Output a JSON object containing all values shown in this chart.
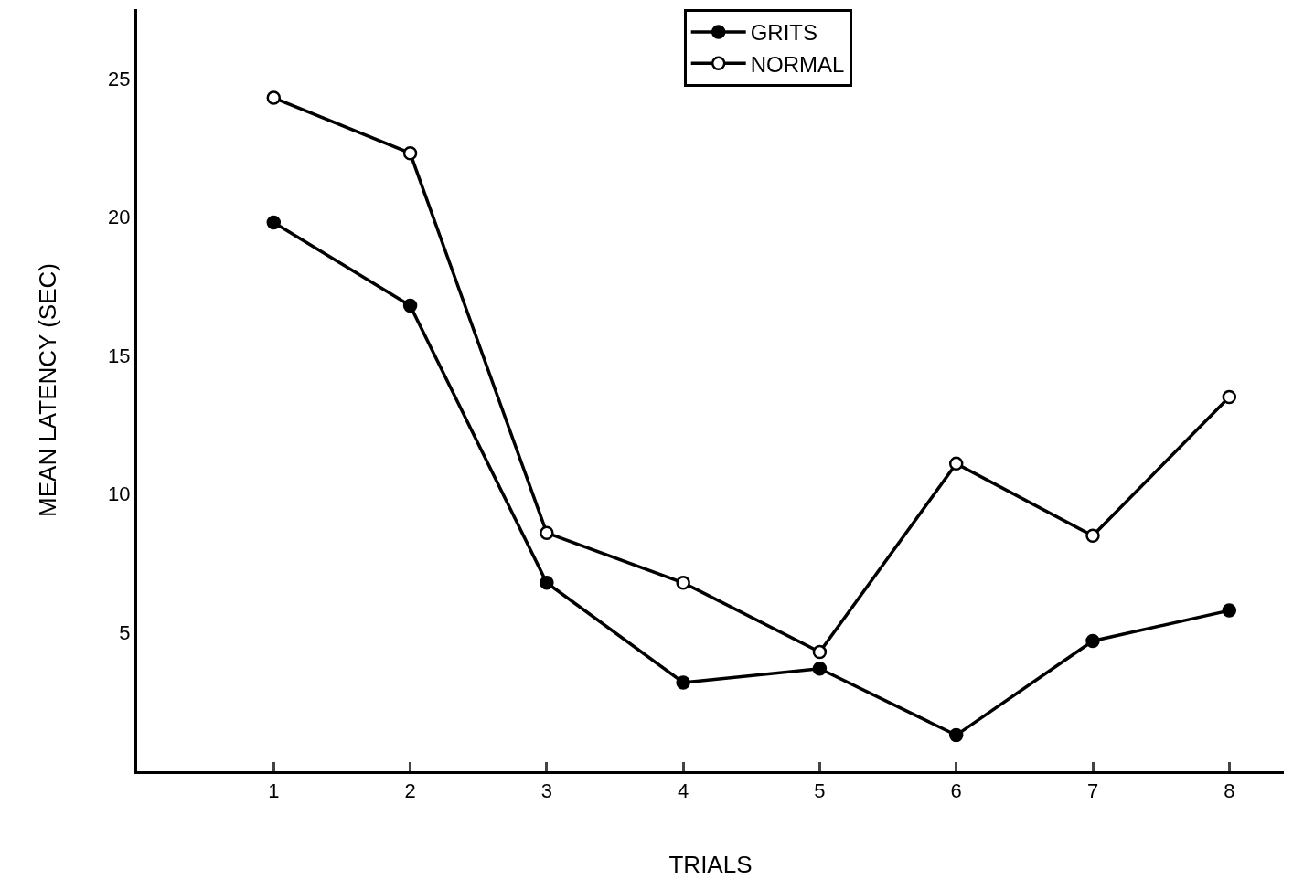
{
  "chart_data": {
    "type": "line",
    "xlabel": "TRIALS",
    "ylabel": "MEAN LATENCY (SEC)",
    "x": [
      1,
      2,
      3,
      4,
      5,
      6,
      7,
      8
    ],
    "series": [
      {
        "name": "GRITS",
        "color": "#000000",
        "marker": "circle",
        "values": [
          19.8,
          16.8,
          6.8,
          3.2,
          3.7,
          1.3,
          4.7,
          5.8
        ]
      },
      {
        "name": "NORMAL",
        "color": "#000000",
        "marker": "circle-open",
        "values": [
          24.3,
          22.3,
          8.6,
          6.8,
          4.3,
          11.1,
          8.5,
          13.5
        ]
      }
    ],
    "xlim": [
      0,
      8.4
    ],
    "xticks": [
      1,
      2,
      3,
      4,
      5,
      6,
      7,
      8
    ],
    "ylim": [
      0,
      27.5
    ],
    "yticks": [
      5,
      10,
      15,
      20,
      25
    ],
    "legend": "top",
    "line_style": "solid"
  }
}
